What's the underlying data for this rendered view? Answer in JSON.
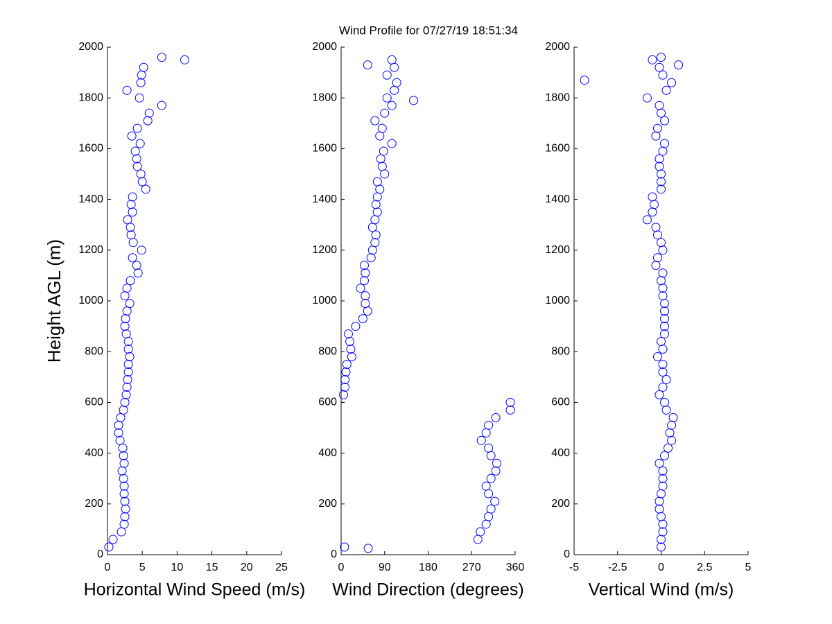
{
  "chart_data": [
    {
      "type": "scatter",
      "title": "Wind Profile for  07/27/19 18:51:34",
      "xlabel": "Horizontal Wind Speed (m/s)",
      "ylabel": "Height AGL (m)",
      "color": "#0000ff",
      "x": [
        0.2,
        0.8,
        2.0,
        2.4,
        2.5,
        2.6,
        2.5,
        2.4,
        2.4,
        2.3,
        2.1,
        2.4,
        2.3,
        2.2,
        1.8,
        1.6,
        1.6,
        1.9,
        2.3,
        2.5,
        2.7,
        2.8,
        2.9,
        3.0,
        3.0,
        3.2,
        3.0,
        3.0,
        2.7,
        2.5,
        2.6,
        2.8,
        3.2,
        2.5,
        2.8,
        3.3,
        4.4,
        4.2,
        3.6,
        4.9,
        3.7,
        3.4,
        3.3,
        2.9,
        3.6,
        3.4,
        3.6,
        5.5,
        5.0,
        4.8,
        4.3,
        4.2,
        4.0,
        4.7,
        3.5,
        4.3,
        5.8,
        6.0,
        7.8,
        4.6,
        2.8,
        4.8,
        4.9,
        5.2,
        11.1,
        7.8
      ],
      "y": [
        30,
        60,
        90,
        120,
        150,
        180,
        210,
        240,
        270,
        300,
        330,
        360,
        390,
        420,
        450,
        480,
        510,
        540,
        570,
        600,
        630,
        660,
        690,
        720,
        750,
        780,
        810,
        840,
        870,
        900,
        930,
        960,
        990,
        1020,
        1050,
        1080,
        1110,
        1140,
        1170,
        1200,
        1230,
        1260,
        1290,
        1320,
        1350,
        1380,
        1410,
        1440,
        1470,
        1500,
        1530,
        1560,
        1590,
        1620,
        1650,
        1680,
        1710,
        1740,
        1770,
        1800,
        1830,
        1860,
        1890,
        1920,
        1950,
        1960
      ],
      "xlim": [
        0,
        25
      ],
      "xticks": [
        0,
        5,
        10,
        15,
        20,
        25
      ],
      "ylim": [
        0,
        2000
      ],
      "yticks": [
        0,
        200,
        400,
        600,
        800,
        1000,
        1200,
        1400,
        1600,
        1800,
        2000
      ]
    },
    {
      "type": "scatter",
      "xlabel": "Wind Direction (degrees)",
      "color": "#0000ff",
      "x": [
        7,
        283,
        288,
        300,
        305,
        310,
        318,
        305,
        300,
        310,
        320,
        322,
        310,
        305,
        290,
        300,
        305,
        320,
        350,
        350,
        5,
        8,
        8,
        10,
        12,
        22,
        20,
        18,
        15,
        30,
        45,
        55,
        50,
        50,
        40,
        48,
        50,
        48,
        62,
        65,
        70,
        72,
        65,
        70,
        75,
        72,
        75,
        80,
        75,
        90,
        85,
        82,
        88,
        105,
        80,
        85,
        70,
        90,
        105,
        95,
        110,
        115,
        95,
        110,
        105,
        55,
        150,
        56
      ],
      "y": [
        30,
        60,
        90,
        120,
        150,
        180,
        210,
        240,
        270,
        300,
        330,
        360,
        390,
        420,
        450,
        480,
        510,
        540,
        570,
        600,
        630,
        660,
        690,
        720,
        750,
        780,
        810,
        840,
        870,
        900,
        930,
        960,
        990,
        1020,
        1050,
        1080,
        1110,
        1140,
        1170,
        1200,
        1230,
        1260,
        1290,
        1320,
        1350,
        1380,
        1410,
        1440,
        1470,
        1500,
        1530,
        1560,
        1590,
        1620,
        1650,
        1680,
        1710,
        1740,
        1770,
        1800,
        1830,
        1860,
        1890,
        1920,
        1950,
        1930,
        1790,
        25
      ],
      "xlim": [
        0,
        360
      ],
      "xticks": [
        0,
        90,
        180,
        270,
        360
      ],
      "ylim": [
        0,
        2000
      ],
      "yticks": [
        0,
        200,
        400,
        600,
        800,
        1000,
        1200,
        1400,
        1600,
        1800,
        2000
      ]
    },
    {
      "type": "scatter",
      "xlabel": "Vertical Wind (m/s)",
      "color": "#0000ff",
      "x": [
        0,
        0,
        0.1,
        0.1,
        0,
        -0.1,
        -0.1,
        0,
        0.1,
        0.1,
        0.1,
        -0.1,
        0.2,
        0.4,
        0.6,
        0.5,
        0.6,
        0.7,
        0.3,
        0.2,
        -0.1,
        0.1,
        0.3,
        0.1,
        0.1,
        -0.2,
        0.1,
        0,
        0.2,
        0.2,
        0.2,
        0.2,
        0.2,
        0.1,
        0.1,
        0,
        0.1,
        -0.3,
        -0.2,
        0.1,
        0,
        -0.2,
        -0.3,
        -0.8,
        -0.5,
        -0.4,
        -0.5,
        0,
        0,
        0,
        -0.1,
        -0.1,
        0.1,
        0.2,
        -0.3,
        -0.2,
        0.2,
        0,
        -0.1,
        -0.8,
        0.3,
        0.6,
        0.1,
        -0.1,
        -0.5,
        0,
        -4.4,
        1.0
      ],
      "y": [
        30,
        60,
        90,
        120,
        150,
        180,
        210,
        240,
        270,
        300,
        330,
        360,
        390,
        420,
        450,
        480,
        510,
        540,
        570,
        600,
        630,
        660,
        690,
        720,
        750,
        780,
        810,
        840,
        870,
        900,
        930,
        960,
        990,
        1020,
        1050,
        1080,
        1110,
        1140,
        1170,
        1200,
        1230,
        1260,
        1290,
        1320,
        1350,
        1380,
        1410,
        1440,
        1470,
        1500,
        1530,
        1560,
        1590,
        1620,
        1650,
        1680,
        1710,
        1740,
        1770,
        1800,
        1830,
        1860,
        1890,
        1920,
        1950,
        1960,
        1870,
        1930
      ],
      "xlim": [
        -5,
        5
      ],
      "xticks": [
        -5,
        -2.5,
        0,
        2.5,
        5
      ],
      "ylim": [
        0,
        2000
      ],
      "yticks": [
        0,
        200,
        400,
        600,
        800,
        1000,
        1200,
        1400,
        1600,
        1800,
        2000
      ]
    }
  ]
}
